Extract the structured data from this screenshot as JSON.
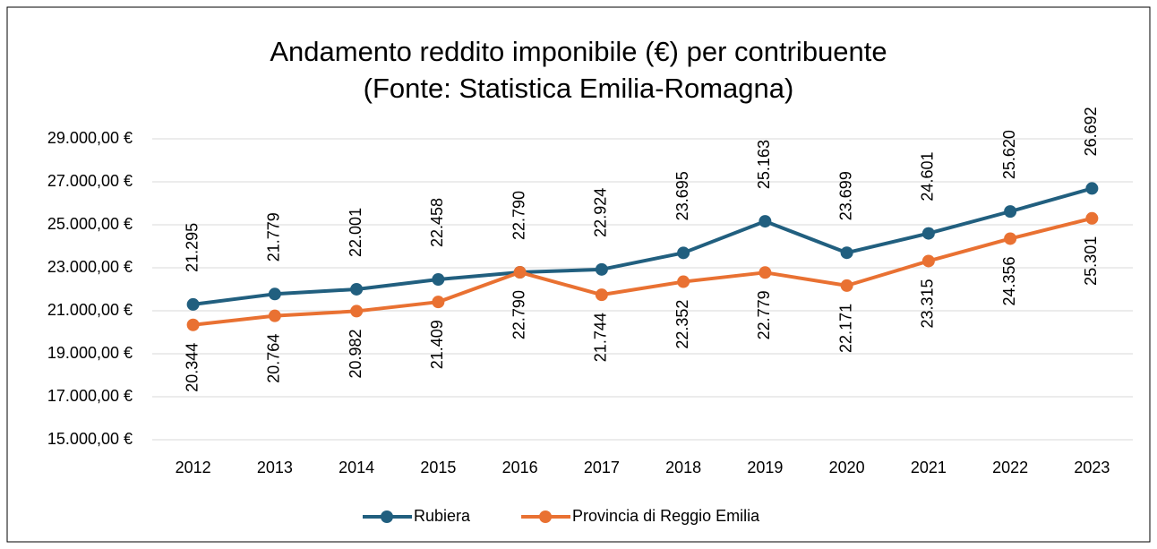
{
  "chart_data": {
    "type": "line",
    "title": [
      "Andamento reddito imponibile (€) per contribuente",
      "(Fonte: Statistica Emilia-Romagna)"
    ],
    "categories": [
      "2012",
      "2013",
      "2014",
      "2015",
      "2016",
      "2017",
      "2018",
      "2019",
      "2020",
      "2021",
      "2022",
      "2023"
    ],
    "series": [
      {
        "name": "Rubiera",
        "color": "#215f7f",
        "values": [
          21295,
          21779,
          22001,
          22458,
          22790,
          22924,
          23695,
          25163,
          23699,
          24601,
          25620,
          26692
        ],
        "value_labels": [
          "21.295",
          "21.779",
          "22.001",
          "22.458",
          "22.790",
          "22.924",
          "23.695",
          "25.163",
          "23.699",
          "24.601",
          "25.620",
          "26.692"
        ],
        "label_position": "above"
      },
      {
        "name": "Provincia di Reggio Emilia",
        "color": "#e97132",
        "values": [
          20344,
          20764,
          20982,
          21409,
          22790,
          21744,
          22352,
          22779,
          22171,
          23315,
          24356,
          25301
        ],
        "value_labels": [
          "20.344",
          "20.764",
          "20.982",
          "21.409",
          "22.790",
          "21.744",
          "22.352",
          "22.779",
          "22.171",
          "23.315",
          "24.356",
          "25.301"
        ],
        "label_position": "below"
      }
    ],
    "ylim": [
      15000,
      29000
    ],
    "yticks": [
      {
        "value": 15000,
        "label": "15.000,00 €"
      },
      {
        "value": 17000,
        "label": "17.000,00 €"
      },
      {
        "value": 19000,
        "label": "19.000,00 €"
      },
      {
        "value": 21000,
        "label": "21.000,00 €"
      },
      {
        "value": 23000,
        "label": "23.000,00 €"
      },
      {
        "value": 25000,
        "label": "25.000,00 €"
      },
      {
        "value": 27000,
        "label": "27.000,00 €"
      },
      {
        "value": 29000,
        "label": "29.000,00 €"
      }
    ],
    "grid": true,
    "legend": "bottom"
  }
}
